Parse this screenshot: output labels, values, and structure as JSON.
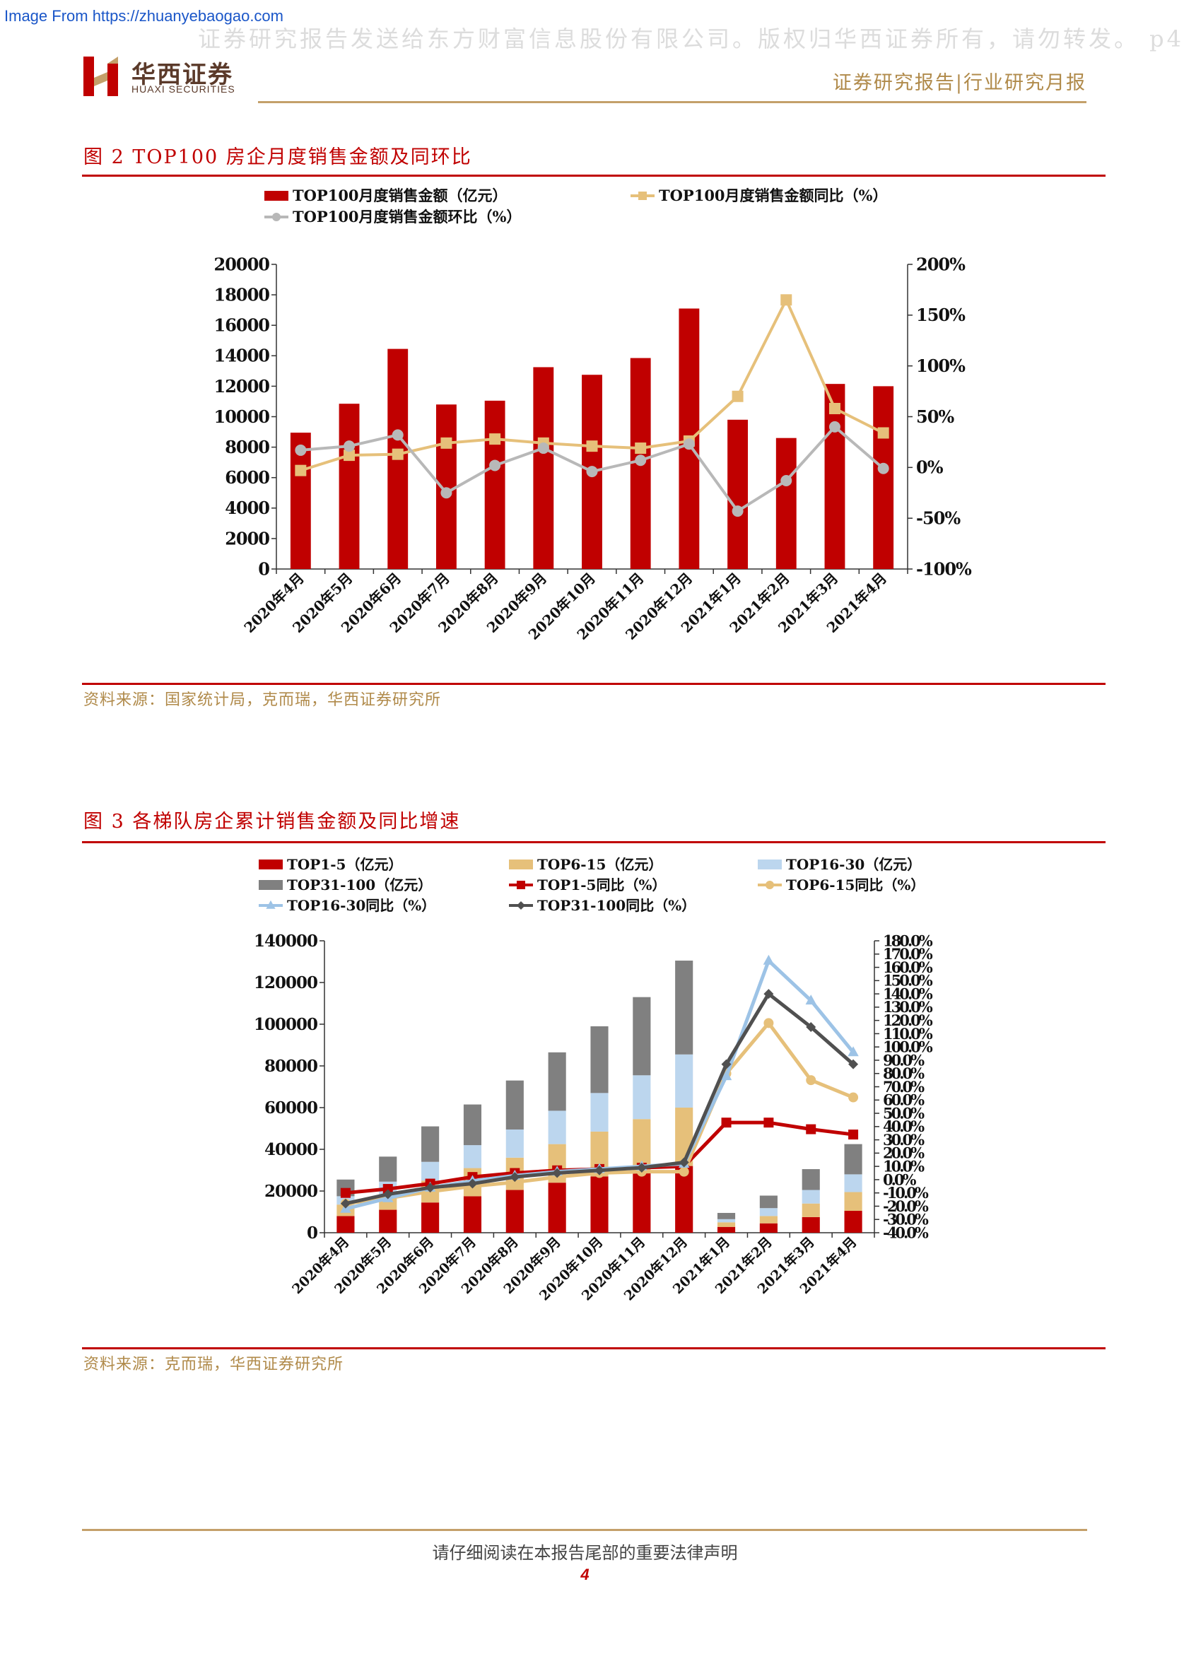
{
  "header": {
    "source_url": "Image From https://zhuanyebaogao.com",
    "watermark": "证券研究报告发送给东方财富信息股份有限公司。版权归华西证券所有，请勿转发。 p4",
    "brand_cn": "华西证券",
    "brand_en": "HUAXI SECURITIES",
    "report_type": "证券研究报告|行业研究月报"
  },
  "figures": [
    {
      "title": "图 2  TOP100 房企月度销售金额及同环比",
      "source": "资料来源：国家统计局，克而瑞，华西证券研究所"
    },
    {
      "title": "图 3  各梯队房企累计销售金额及同比增速",
      "source": "资料来源：克而瑞，华西证券研究所"
    }
  ],
  "footer": {
    "disclaimer": "请仔细阅读在本报告尾部的重要法律声明",
    "page_number": "4"
  },
  "chart_data": [
    {
      "type": "bar",
      "categories": [
        "2020年4月",
        "2020年5月",
        "2020年6月",
        "2020年7月",
        "2020年8月",
        "2020年9月",
        "2020年10月",
        "2020年11月",
        "2020年12月",
        "2021年1月",
        "2021年2月",
        "2021年3月",
        "2021年4月"
      ],
      "ylim": [
        0,
        20000
      ],
      "yticks": [
        "0",
        "2000",
        "4000",
        "6000",
        "8000",
        "10000",
        "12000",
        "14000",
        "16000",
        "18000",
        "20000"
      ],
      "y2lim": [
        -100,
        200
      ],
      "y2ticks": [
        "-100%",
        "-50%",
        "0%",
        "50%",
        "100%",
        "150%",
        "200%"
      ],
      "legend_position": "top",
      "series": [
        {
          "name": "TOP100月度销售金额（亿元）",
          "type": "bar",
          "axis": "left",
          "color": "#c00000",
          "values": [
            8950,
            10850,
            14450,
            10800,
            11050,
            13250,
            12750,
            13850,
            17100,
            9800,
            8600,
            12150,
            12000
          ]
        },
        {
          "name": "TOP100月度销售金额同比（%）",
          "type": "line",
          "marker": "square",
          "axis": "right",
          "color": "#e6c07a",
          "values": [
            -3,
            12,
            13,
            24,
            28,
            24,
            21,
            19,
            26,
            70,
            165,
            58,
            34
          ]
        },
        {
          "name": "TOP100月度销售金额环比（%）",
          "type": "line",
          "marker": "circle",
          "axis": "right",
          "color": "#b8b8b8",
          "values": [
            17,
            21,
            32,
            -25,
            2,
            19,
            -4,
            7,
            23,
            -43,
            -13,
            40,
            -1
          ]
        }
      ]
    },
    {
      "type": "bar",
      "stacked": true,
      "categories": [
        "2020年4月",
        "2020年5月",
        "2020年6月",
        "2020年7月",
        "2020年8月",
        "2020年9月",
        "2020年10月",
        "2020年11月",
        "2020年12月",
        "2021年1月",
        "2021年2月",
        "2021年3月",
        "2021年4月"
      ],
      "ylim": [
        0,
        140000
      ],
      "yticks": [
        "0",
        "20000",
        "40000",
        "60000",
        "80000",
        "100000",
        "120000",
        "140000"
      ],
      "y2lim": [
        -40,
        180
      ],
      "y2ticks": [
        "-40.0%",
        "-30.0%",
        "-20.0%",
        "-10.0%",
        "0.0%",
        "10.0%",
        "20.0%",
        "30.0%",
        "40.0%",
        "50.0%",
        "60.0%",
        "70.0%",
        "80.0%",
        "90.0%",
        "100.0%",
        "110.0%",
        "120.0%",
        "130.0%",
        "140.0%",
        "150.0%",
        "160.0%",
        "170.0%",
        "180.0%"
      ],
      "legend_position": "top",
      "series": [
        {
          "name": "TOP1-5（亿元）",
          "type": "bar",
          "axis": "left",
          "color": "#c00000",
          "values": [
            8000,
            11000,
            14500,
            17500,
            20500,
            24000,
            27000,
            29500,
            32000,
            2800,
            4500,
            7500,
            10500
          ]
        },
        {
          "name": "TOP6-15（亿元）",
          "type": "bar",
          "axis": "left",
          "color": "#e6c07a",
          "values": [
            5500,
            7500,
            10500,
            13500,
            15500,
            18500,
            21500,
            25000,
            28000,
            2200,
            3500,
            6500,
            9000
          ]
        },
        {
          "name": "TOP16-30（亿元）",
          "type": "bar",
          "axis": "left",
          "color": "#bcd6ee",
          "values": [
            4000,
            6000,
            9000,
            11000,
            13500,
            16000,
            18500,
            21000,
            25500,
            1500,
            3800,
            6500,
            8500
          ]
        },
        {
          "name": "TOP31-100（亿元）",
          "type": "bar",
          "axis": "left",
          "color": "#808080",
          "values": [
            8000,
            12000,
            17000,
            19500,
            23500,
            28000,
            32000,
            37500,
            45000,
            3000,
            6000,
            10000,
            14500
          ]
        },
        {
          "name": "TOP1-5同比（%）",
          "type": "line",
          "marker": "square",
          "axis": "right",
          "color": "#c00000",
          "values": [
            -10,
            -7,
            -3,
            2,
            5,
            7,
            8,
            9,
            10,
            43,
            43,
            38,
            34
          ]
        },
        {
          "name": "TOP6-15同比（%）",
          "type": "line",
          "marker": "circle",
          "axis": "right",
          "color": "#e6c07a",
          "values": [
            -18,
            -14,
            -9,
            -5,
            -2,
            2,
            5,
            6,
            6,
            80,
            118,
            75,
            62
          ]
        },
        {
          "name": "TOP16-30同比（%）",
          "type": "line",
          "marker": "triangle",
          "axis": "right",
          "color": "#9dc3e6",
          "values": [
            -22,
            -14,
            -6,
            -1,
            3,
            6,
            8,
            10,
            12,
            78,
            165,
            135,
            96
          ]
        },
        {
          "name": "TOP31-100同比（%）",
          "type": "line",
          "marker": "diamond",
          "axis": "right",
          "color": "#505050",
          "values": [
            -18,
            -11,
            -6,
            -3,
            2,
            5,
            7,
            9,
            13,
            87,
            140,
            115,
            87
          ]
        }
      ]
    }
  ]
}
